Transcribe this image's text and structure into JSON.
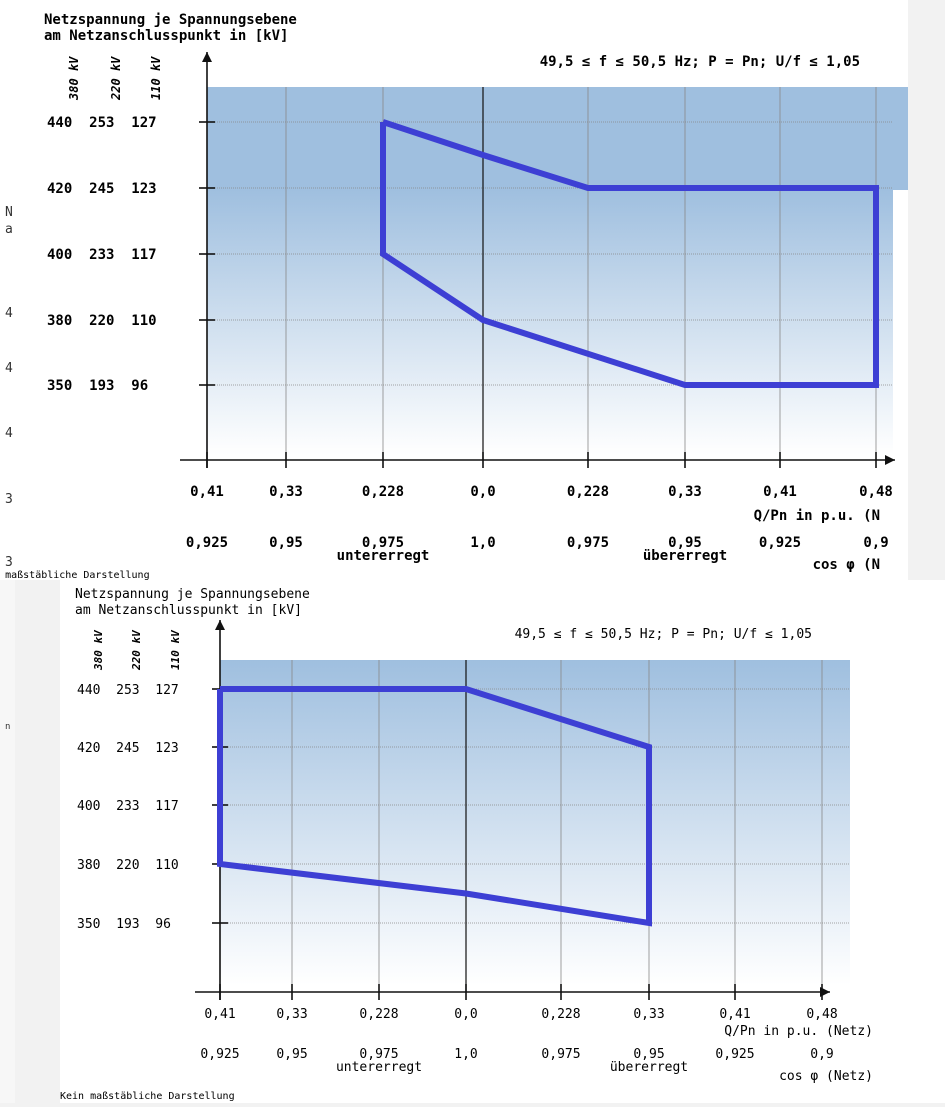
{
  "colors": {
    "polygon": "#3d3fd4",
    "band_top": "#9fbfdf",
    "band_bottom": "#ffffff",
    "grid": "#888888",
    "axis": "#111111"
  },
  "chart_data": [
    {
      "type": "line",
      "title_line1": "Netzspannung je Spannungsebene",
      "title_line2": "am Netzanschlusspunkt in [kV]",
      "condition": "49,5 ≤ f ≤ 50,5 Hz; P = Pn; U/f ≤ 1,05",
      "voltage_level_headers": [
        "380 kV",
        "220 kV",
        "110 kV"
      ],
      "y_tick_labels": [
        "440  253  127",
        "420  245  123",
        "400  233  117",
        "380  220  110",
        "350  193  96"
      ],
      "x_tick_labels_q": [
        "0,41",
        "0,33",
        "0,228",
        "0,0",
        "0,228",
        "0,33",
        "0,41",
        "0,48"
      ],
      "x_tick_labels_cos": [
        "0,925",
        "0,95",
        "0,975",
        "1,0",
        "0,975",
        "0,95",
        "0,925",
        "0,9"
      ],
      "x_signed_q": [
        -0.41,
        -0.33,
        -0.228,
        0.0,
        0.228,
        0.33,
        0.41,
        0.48
      ],
      "x_axis_label": "Q/Pn in p.u. (N",
      "cos_axis_label": "cos φ (N",
      "regime_left": "untererregt",
      "regime_right": "übererregt",
      "footnote": "Kein maßstäbliche Darstellung",
      "xlim": [
        -0.41,
        0.48
      ],
      "ylim_kV_380": [
        350,
        440
      ],
      "boundary_polygon": {
        "x_q": [
          -0.228,
          0.0,
          0.228,
          0.48,
          0.48,
          0.33,
          0.0,
          -0.228,
          -0.228
        ],
        "y_kV_380": [
          440,
          430,
          420,
          420,
          350,
          350,
          380,
          400,
          440
        ]
      }
    },
    {
      "type": "line",
      "title_line1": "Netzspannung je Spannungsebene",
      "title_line2": "am Netzanschlusspunkt in [kV]",
      "condition": "49,5 ≤ f ≤ 50,5 Hz; P = Pn; U/f ≤ 1,05",
      "voltage_level_headers": [
        "380 kV",
        "220 kV",
        "110 kV"
      ],
      "y_tick_labels": [
        "440  253  127",
        "420  245  123",
        "400  233  117",
        "380  220  110",
        "350  193  96"
      ],
      "x_tick_labels_q": [
        "0,41",
        "0,33",
        "0,228",
        "0,0",
        "0,228",
        "0,33",
        "0,41",
        "0,48"
      ],
      "x_tick_labels_cos": [
        "0,925",
        "0,95",
        "0,975",
        "1,0",
        "0,975",
        "0,95",
        "0,925",
        "0,9"
      ],
      "x_signed_q": [
        -0.41,
        -0.33,
        -0.228,
        0.0,
        0.228,
        0.33,
        0.41,
        0.48
      ],
      "x_axis_label": "Q/Pn in p.u. (Netz)",
      "cos_axis_label": "cos φ (Netz)",
      "regime_left": "untererregt",
      "regime_right": "übererregt",
      "footnote": "Kein maßstäbliche Darstellung",
      "xlim": [
        -0.41,
        0.48
      ],
      "ylim_kV_380": [
        350,
        440
      ],
      "boundary_polygon": {
        "x_q": [
          -0.41,
          0.0,
          0.33,
          0.33,
          0.0,
          -0.41,
          -0.41
        ],
        "y_kV_380": [
          440,
          440,
          420,
          350,
          365,
          380,
          440
        ]
      }
    }
  ],
  "right_fragments": [
    "N",
    "a",
    "4",
    "4",
    "4",
    "3",
    "3",
    "n"
  ]
}
